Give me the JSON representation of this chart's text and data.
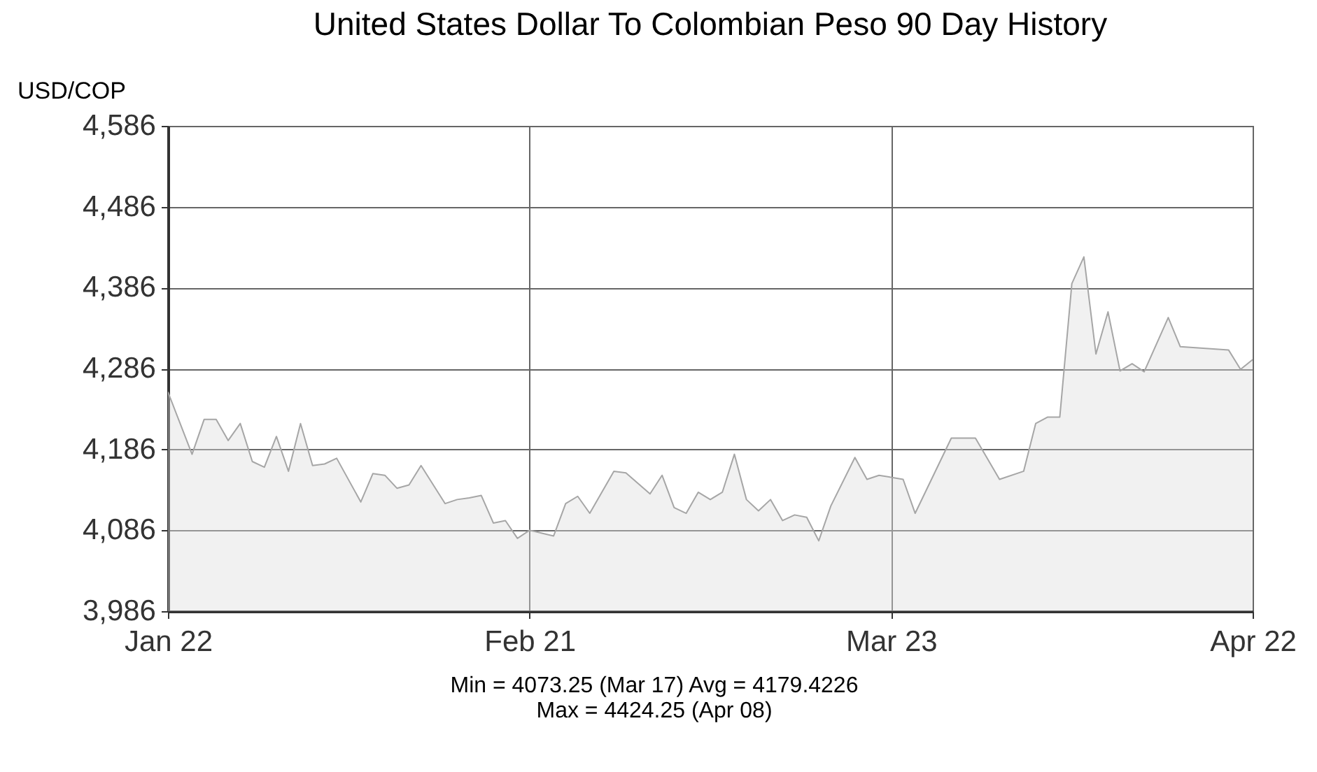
{
  "chart_data": {
    "type": "area",
    "title": "United States Dollar To Colombian Peso 90 Day History",
    "ylabel": "USD/COP",
    "annotations": [
      "Min = 4073.25 (Mar 17) Avg = 4179.4226",
      "Max = 4424.25 (Apr 08)"
    ],
    "x": [
      "--01-22",
      "--01-24",
      "--01-25",
      "--01-26",
      "--01-27",
      "--01-28",
      "--01-29",
      "--01-30",
      "--01-31",
      "--02-01",
      "--02-02",
      "--02-03",
      "--02-04",
      "--02-05",
      "--02-07",
      "--02-08",
      "--02-09",
      "--02-10",
      "--02-11",
      "--02-12",
      "--02-14",
      "--02-15",
      "--02-16",
      "--02-17",
      "--02-18",
      "--02-19",
      "--02-20",
      "--02-21",
      "--02-23",
      "--02-24",
      "--02-25",
      "--02-26",
      "--02-28",
      "--03-01",
      "--03-03",
      "--03-04",
      "--03-05",
      "--03-06",
      "--03-07",
      "--03-08",
      "--03-09",
      "--03-10",
      "--03-11",
      "--03-12",
      "--03-13",
      "--03-14",
      "--03-15",
      "--03-16",
      "--03-17",
      "--03-18",
      "--03-20",
      "--03-21",
      "--03-22",
      "--03-24",
      "--03-25",
      "--03-28",
      "--03-30",
      "--04-01",
      "--04-03",
      "--04-04",
      "--04-05",
      "--04-06",
      "--04-07",
      "--04-08",
      "--04-09",
      "--04-10",
      "--04-11",
      "--04-12",
      "--04-13",
      "--04-15",
      "--04-16",
      "--04-20",
      "--04-21",
      "--04-22"
    ],
    "series": [
      {
        "color": "#a6a6a6",
        "values": [
          4257,
          4180,
          4223,
          4223,
          4197,
          4218,
          4171,
          4164,
          4202,
          4159,
          4218,
          4166,
          4168,
          4175,
          4121,
          4156,
          4154,
          4138,
          4142,
          4166,
          4119,
          4124,
          4126,
          4129,
          4095,
          4098,
          4076,
          4086,
          4079,
          4119,
          4128,
          4107,
          4159,
          4157,
          4131,
          4154,
          4114,
          4107,
          4133,
          4124,
          4133,
          4180,
          4124,
          4110,
          4124,
          4098,
          4105,
          4102,
          4073,
          4116,
          4176,
          4149,
          4154,
          4149,
          4107,
          4200,
          4200,
          4149,
          4159,
          4218,
          4226,
          4226,
          4391,
          4424,
          4304,
          4356,
          4283,
          4292,
          4282,
          4349,
          4313,
          4309,
          4285,
          4297
        ]
      }
    ],
    "xlim": [
      "--01-22",
      "--04-22"
    ],
    "xticks": [
      {
        "value": "--01-22",
        "label": "Jan 22"
      },
      {
        "value": "--02-21",
        "label": "Feb 21"
      },
      {
        "value": "--03-23",
        "label": "Mar 23"
      },
      {
        "value": "--04-22",
        "label": "Apr 22"
      }
    ],
    "ylim": [
      3986,
      4586
    ],
    "yticks": [
      {
        "value": 3986,
        "label": "3,986"
      },
      {
        "value": 4086,
        "label": "4,086"
      },
      {
        "value": 4186,
        "label": "4,186"
      },
      {
        "value": 4286,
        "label": "4,286"
      },
      {
        "value": 4386,
        "label": "4,386"
      },
      {
        "value": 4486,
        "label": "4,486"
      },
      {
        "value": 4586,
        "label": "4,586"
      }
    ],
    "grid": true
  }
}
